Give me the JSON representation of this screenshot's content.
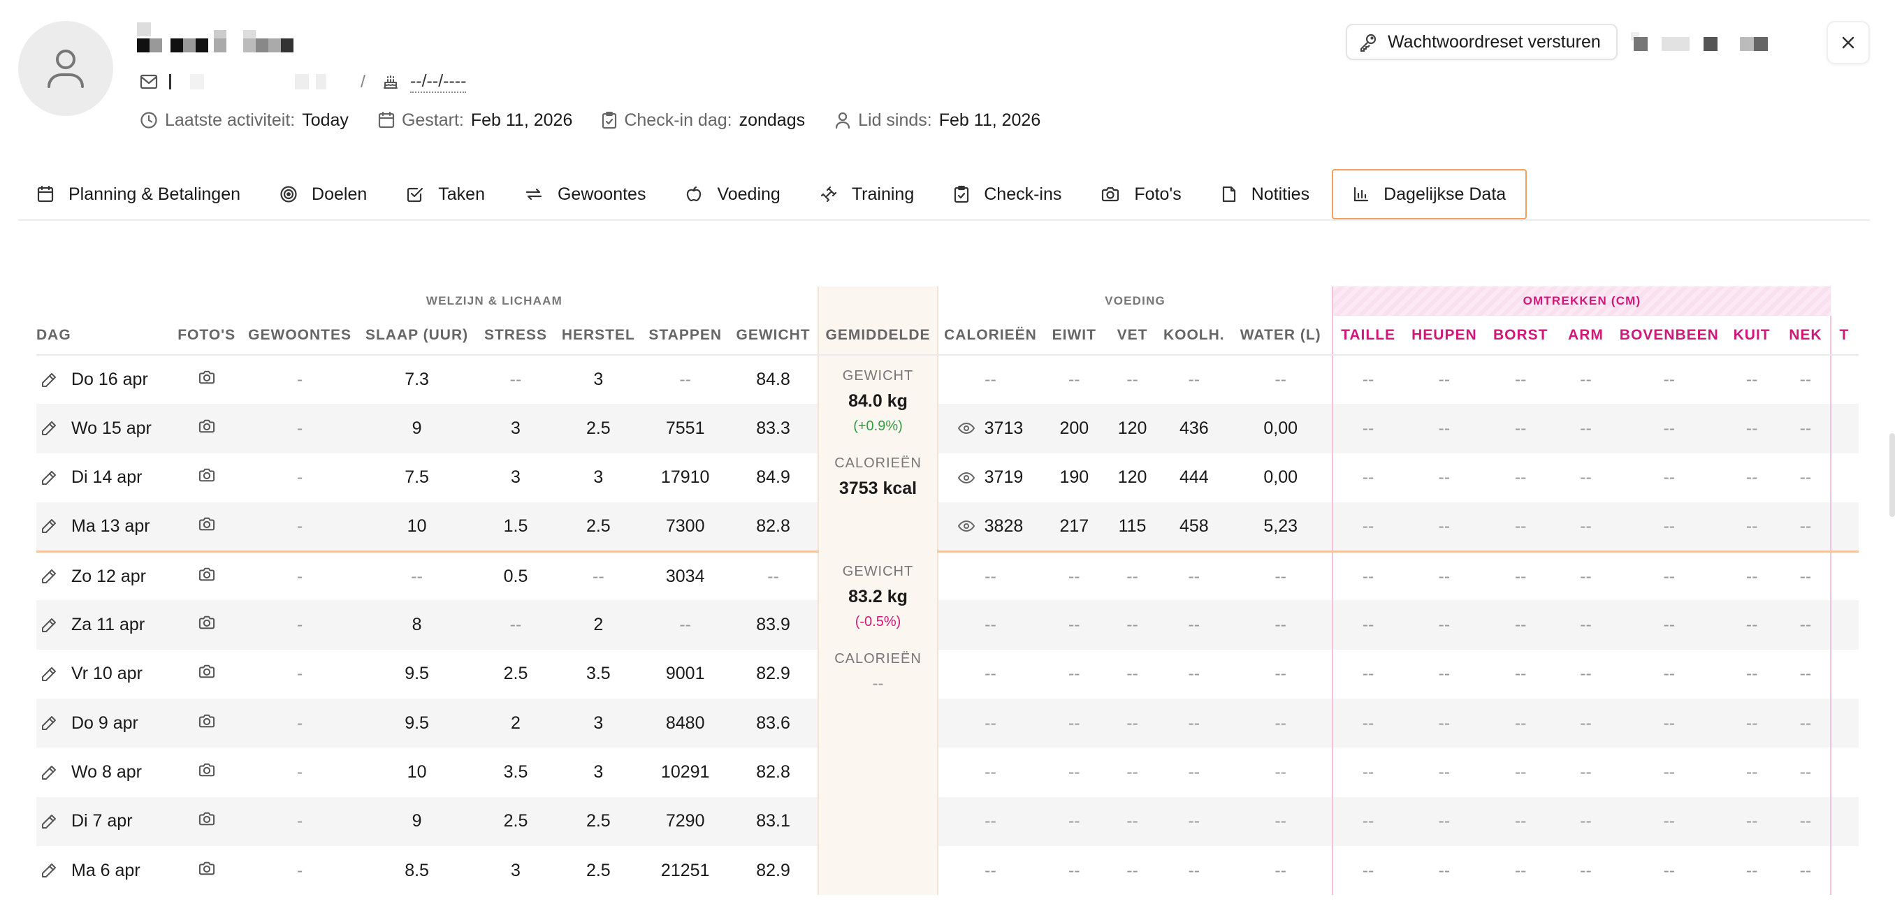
{
  "profile": {
    "date_of_birth": "--/--/----",
    "separator": "/",
    "meta": [
      {
        "icon": "clock-icon",
        "label": "Laatste activiteit:",
        "value": "Today"
      },
      {
        "icon": "calendar-icon",
        "label": "Gestart:",
        "value": "Feb 11, 2026"
      },
      {
        "icon": "clipboard-check-icon",
        "label": "Check-in dag:",
        "value": "zondags"
      },
      {
        "icon": "user-icon",
        "label": "Lid sinds:",
        "value": "Feb 11, 2026"
      }
    ]
  },
  "actions": {
    "reset_password": "Wachtwoordreset versturen"
  },
  "tabs": [
    {
      "label": "Planning & Betalingen",
      "icon": "calendar-icon"
    },
    {
      "label": "Doelen",
      "icon": "target-icon"
    },
    {
      "label": "Taken",
      "icon": "checkbox-icon"
    },
    {
      "label": "Gewoontes",
      "icon": "repeat-icon"
    },
    {
      "label": "Voeding",
      "icon": "apple-icon"
    },
    {
      "label": "Training",
      "icon": "dumbbell-icon"
    },
    {
      "label": "Check-ins",
      "icon": "clipboard-check-icon"
    },
    {
      "label": "Foto's",
      "icon": "camera-icon"
    },
    {
      "label": "Notities",
      "icon": "note-icon"
    },
    {
      "label": "Dagelijkse Data",
      "icon": "bar-chart-icon",
      "active": true
    }
  ],
  "table": {
    "groups": {
      "wellbeing": "WELZIJN & LICHAAM",
      "nutrition": "VOEDING",
      "measurements": "OMTREKKEN (CM)"
    },
    "columns": {
      "dag": "DAG",
      "fotos": "FOTO'S",
      "gewoontes": "GEWOONTES",
      "slaap": "SLAAP (UUR)",
      "stress": "STRESS",
      "herstel": "HERSTEL",
      "stappen": "STAPPEN",
      "gewicht": "GEWICHT",
      "gemiddelde": "GEMIDDELDE",
      "calorieen": "CALORIEËN",
      "eiwit": "EIWIT",
      "vet": "VET",
      "koolh": "KOOLH.",
      "water": "WATER (L)",
      "taille": "TAILLE",
      "heupen": "HEUPEN",
      "borst": "BORST",
      "arm": "ARM",
      "bovenbeen": "BOVENBEEN",
      "kuit": "KUIT",
      "nek": "NEK",
      "t": "T"
    },
    "weeks": [
      {
        "avg": {
          "weight_label": "GEWICHT",
          "weight": "84.0 kg",
          "weight_change": "(+0.9%)",
          "weight_trend": "up",
          "cal_label": "CALORIEËN",
          "cal": "3753 kcal"
        },
        "rows": [
          {
            "dag": "Do 16 apr",
            "gewoontes": "-",
            "slaap": "7.3",
            "stress": "--",
            "herstel": "3",
            "stappen": "--",
            "gewicht": "84.8",
            "cal": "--",
            "cal_eye": false,
            "eiwit": "--",
            "vet": "--",
            "koolh": "--",
            "water": "--"
          },
          {
            "dag": "Wo 15 apr",
            "gewoontes": "-",
            "slaap": "9",
            "stress": "3",
            "herstel": "2.5",
            "stappen": "7551",
            "gewicht": "83.3",
            "cal": "3713",
            "cal_eye": true,
            "eiwit": "200",
            "vet": "120",
            "koolh": "436",
            "water": "0,00"
          },
          {
            "dag": "Di 14 apr",
            "gewoontes": "-",
            "slaap": "7.5",
            "stress": "3",
            "herstel": "3",
            "stappen": "17910",
            "gewicht": "84.9",
            "cal": "3719",
            "cal_eye": true,
            "eiwit": "190",
            "vet": "120",
            "koolh": "444",
            "water": "0,00"
          },
          {
            "dag": "Ma 13 apr",
            "gewoontes": "-",
            "slaap": "10",
            "stress": "1.5",
            "herstel": "2.5",
            "stappen": "7300",
            "gewicht": "82.8",
            "cal": "3828",
            "cal_eye": true,
            "eiwit": "217",
            "vet": "115",
            "koolh": "458",
            "water": "5,23"
          }
        ]
      },
      {
        "avg": {
          "weight_label": "GEWICHT",
          "weight": "83.2 kg",
          "weight_change": "(-0.5%)",
          "weight_trend": "down",
          "cal_label": "CALORIEËN",
          "cal": "--"
        },
        "rows": [
          {
            "dag": "Zo 12 apr",
            "gewoontes": "-",
            "slaap": "--",
            "stress": "0.5",
            "herstel": "--",
            "stappen": "3034",
            "gewicht": "--",
            "cal": "--",
            "cal_eye": false,
            "eiwit": "--",
            "vet": "--",
            "koolh": "--",
            "water": "--"
          },
          {
            "dag": "Za 11 apr",
            "gewoontes": "-",
            "slaap": "8",
            "stress": "--",
            "herstel": "2",
            "stappen": "--",
            "gewicht": "83.9",
            "cal": "--",
            "cal_eye": false,
            "eiwit": "--",
            "vet": "--",
            "koolh": "--",
            "water": "--"
          },
          {
            "dag": "Vr 10 apr",
            "gewoontes": "-",
            "slaap": "9.5",
            "stress": "2.5",
            "herstel": "3.5",
            "stappen": "9001",
            "gewicht": "82.9",
            "cal": "--",
            "cal_eye": false,
            "eiwit": "--",
            "vet": "--",
            "koolh": "--",
            "water": "--"
          },
          {
            "dag": "Do 9 apr",
            "gewoontes": "-",
            "slaap": "9.5",
            "stress": "2",
            "herstel": "3",
            "stappen": "8480",
            "gewicht": "83.6",
            "cal": "--",
            "cal_eye": false,
            "eiwit": "--",
            "vet": "--",
            "koolh": "--",
            "water": "--"
          },
          {
            "dag": "Wo 8 apr",
            "gewoontes": "-",
            "slaap": "10",
            "stress": "3.5",
            "herstel": "3",
            "stappen": "10291",
            "gewicht": "82.8",
            "cal": "--",
            "cal_eye": false,
            "eiwit": "--",
            "vet": "--",
            "koolh": "--",
            "water": "--"
          },
          {
            "dag": "Di 7 apr",
            "gewoontes": "-",
            "slaap": "9",
            "stress": "2.5",
            "herstel": "2.5",
            "stappen": "7290",
            "gewicht": "83.1",
            "cal": "--",
            "cal_eye": false,
            "eiwit": "--",
            "vet": "--",
            "koolh": "--",
            "water": "--"
          },
          {
            "dag": "Ma 6 apr",
            "gewoontes": "-",
            "slaap": "8.5",
            "stress": "3",
            "herstel": "2.5",
            "stappen": "21251",
            "gewicht": "82.9",
            "cal": "--",
            "cal_eye": false,
            "eiwit": "--",
            "vet": "--",
            "koolh": "--",
            "water": "--"
          }
        ]
      }
    ],
    "measurement_placeholder": "--"
  },
  "colors": {
    "accent_orange": "#f0a060",
    "measurement_pink": "#d1187a",
    "trend_up": "#2f9e44",
    "average_bg": "#fcf6f1"
  }
}
